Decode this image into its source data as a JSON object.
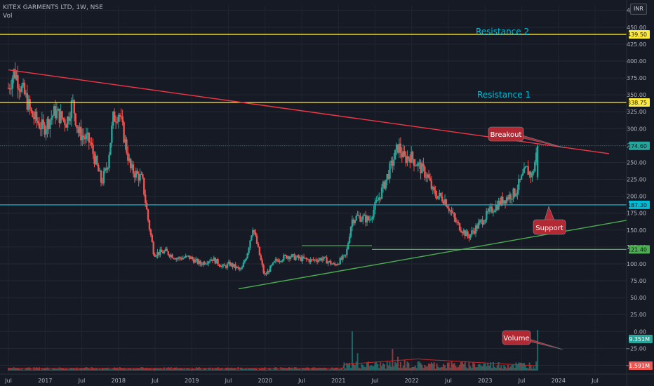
{
  "header": {
    "title": "KITEX GARMENTS LTD, 1W, NSE",
    "volume_label": "Vol",
    "currency": "INR"
  },
  "colors": {
    "background": "#161a25",
    "up_candle": "#26a69a",
    "down_candle": "#ef5350",
    "trendline": "#f23645",
    "support_line": "#4caf50",
    "resistance_line": "#ffeb3b",
    "horizontal_support": "#00bcd4",
    "annotation_text": "#00bcd4",
    "callout_fill": "#b22833",
    "volume_ma": "#c62828"
  },
  "chart_data": {
    "type": "candlestick",
    "title": "KITEX GARMENTS LTD, 1W, NSE",
    "x_ticks": [
      "Jul",
      "2017",
      "Jul",
      "2018",
      "Jul",
      "2019",
      "Jul",
      "2020",
      "Jul",
      "2021",
      "Jul",
      "2022",
      "Jul",
      "2023",
      "Jul",
      "2024",
      "Jul"
    ],
    "y_ticks": [
      "475.00",
      "450.00",
      "425.00",
      "400.00",
      "375.00",
      "350.00",
      "325.00",
      "300.00",
      "275.00",
      "250.00",
      "225.00",
      "200.00",
      "175.00",
      "150.00",
      "125.00",
      "100.00",
      "75.00",
      "50.00",
      "25.00",
      "0.00",
      "−25.00",
      "−50.00"
    ],
    "ylim": [
      -62,
      482
    ],
    "price_labels": [
      {
        "value": 439.5,
        "text": "439.50",
        "color": "#ffeb3b"
      },
      {
        "value": 338.75,
        "text": "338.75",
        "color": "#ffeb3b"
      },
      {
        "value": 274.6,
        "text": "274.60",
        "color": "#26a69a"
      },
      {
        "value": 187.3,
        "text": "187.30",
        "color": "#00bcd4"
      },
      {
        "value": 121.4,
        "text": "121.40",
        "color": "#4caf50"
      }
    ],
    "volume_labels": [
      {
        "text": "9.351M",
        "color": "#26a69a"
      },
      {
        "text": "1.591M",
        "color": "#ef5350"
      }
    ],
    "horizontal_lines": [
      {
        "name": "Resistance 2",
        "value": 439.5
      },
      {
        "name": "Resistance 1",
        "value": 338.75
      },
      {
        "name": "Support",
        "value": 187.3
      }
    ],
    "annotations": {
      "resistance2": "Resistance 2",
      "resistance1": "Resistance 1",
      "breakout": "Breakout",
      "support": "Support",
      "volume": "Volume"
    },
    "close_path": [
      [
        "2016-07",
        360
      ],
      [
        "2016-08",
        385
      ],
      [
        "2016-10",
        345
      ],
      [
        "2016-11",
        320
      ],
      [
        "2017-01",
        300
      ],
      [
        "2017-03",
        325
      ],
      [
        "2017-05",
        310
      ],
      [
        "2017-06",
        340
      ],
      [
        "2017-07",
        295
      ],
      [
        "2017-09",
        280
      ],
      [
        "2017-11",
        220
      ],
      [
        "2017-12",
        245
      ],
      [
        "2018-01",
        315
      ],
      [
        "2018-02",
        325
      ],
      [
        "2018-04",
        240
      ],
      [
        "2018-06",
        225
      ],
      [
        "2018-07",
        165
      ],
      [
        "2018-08",
        115
      ],
      [
        "2018-10",
        118
      ],
      [
        "2018-12",
        108
      ],
      [
        "2019-02",
        110
      ],
      [
        "2019-04",
        100
      ],
      [
        "2019-06",
        108
      ],
      [
        "2019-08",
        95
      ],
      [
        "2019-09",
        100
      ],
      [
        "2019-11",
        90
      ],
      [
        "2019-12",
        115
      ],
      [
        "2020-01",
        155
      ],
      [
        "2020-03",
        82
      ],
      [
        "2020-05",
        105
      ],
      [
        "2020-07",
        112
      ],
      [
        "2020-09",
        108
      ],
      [
        "2020-11",
        105
      ],
      [
        "2021-01",
        108
      ],
      [
        "2021-03",
        98
      ],
      [
        "2021-05",
        112
      ],
      [
        "2021-06",
        165
      ],
      [
        "2021-07",
        170
      ],
      [
        "2021-09",
        165
      ],
      [
        "2021-11",
        205
      ],
      [
        "2022-01",
        250
      ],
      [
        "2022-02",
        275
      ],
      [
        "2022-03",
        255
      ],
      [
        "2022-04",
        260
      ],
      [
        "2022-06",
        240
      ],
      [
        "2022-07",
        230
      ],
      [
        "2022-08",
        205
      ],
      [
        "2022-10",
        195
      ],
      [
        "2022-12",
        160
      ],
      [
        "2023-02",
        140
      ],
      [
        "2023-04",
        160
      ],
      [
        "2023-06",
        180
      ],
      [
        "2023-08",
        195
      ],
      [
        "2023-10",
        205
      ],
      [
        "2023-12",
        240
      ],
      [
        "2024-01",
        230
      ],
      [
        "2024-02",
        275
      ]
    ],
    "volume_spikes": [
      [
        "2021-06",
        9.0
      ],
      [
        "2021-07",
        4.0
      ],
      [
        "2022-01",
        5.0
      ],
      [
        "2022-02",
        3.2
      ],
      [
        "2022-03",
        2.5
      ],
      [
        "2024-02",
        9.351
      ]
    ],
    "volume_ma_value": "1.591M"
  }
}
